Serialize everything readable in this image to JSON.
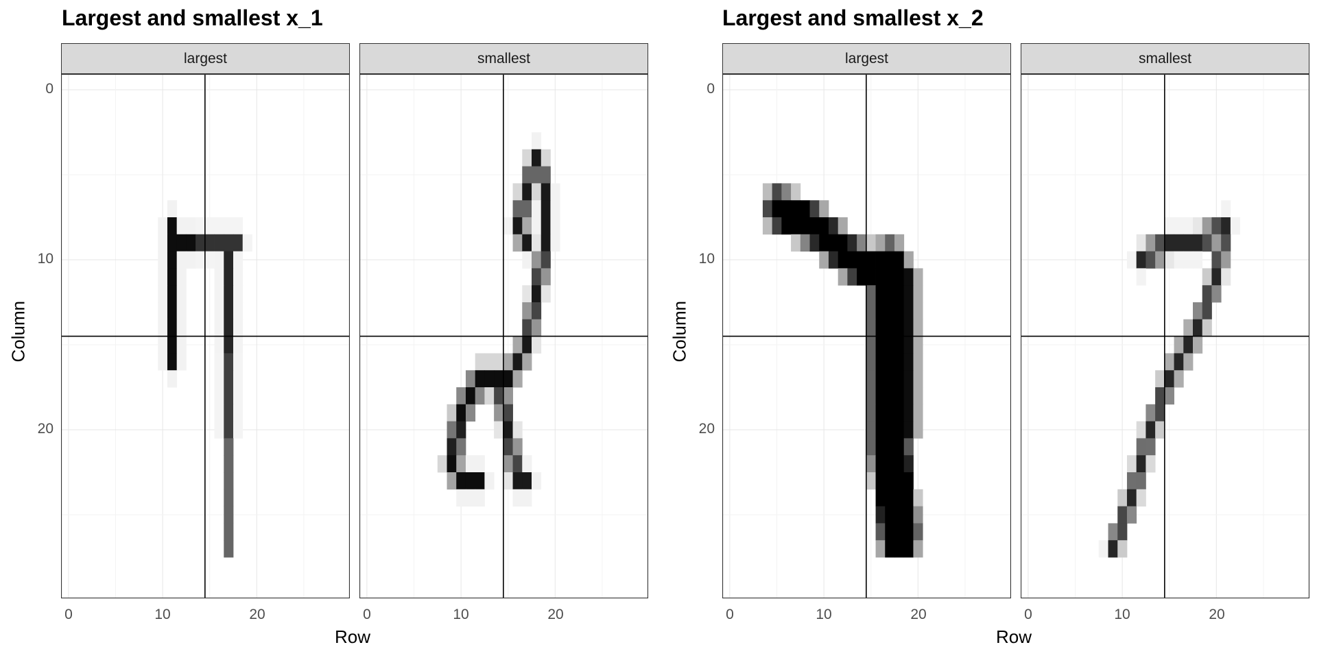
{
  "chart_data": [
    {
      "type": "heatmap",
      "title": "Largest and smallest x_1",
      "xlabel": "Row",
      "ylabel": "Column",
      "xlim": [
        0,
        28
      ],
      "ylim": [
        0,
        28
      ],
      "x_ticks": [
        "0",
        "10",
        "20"
      ],
      "y_ticks": [
        "0",
        "10",
        "20"
      ],
      "grid": true,
      "reference_lines": {
        "vertical": 14.5,
        "horizontal": 14.5
      },
      "facets": [
        {
          "label": "largest",
          "strokes": [
            {
              "points": [
                [
                  11,
                  8
                ],
                [
                  11,
                  12
                ],
                [
                  11,
                  15
                ],
                [
                  11,
                  16
                ]
              ],
              "width": 1,
              "value": 0.95
            },
            {
              "points": [
                [
                  11,
                  9
                ],
                [
                  13,
                  9
                ]
              ],
              "width": 1,
              "value": 0.95
            },
            {
              "points": [
                [
                  14,
                  9
                ],
                [
                  18,
                  9
                ]
              ],
              "width": 1,
              "value": 0.8
            },
            {
              "points": [
                [
                  17,
                  10
                ],
                [
                  17,
                  15
                ]
              ],
              "width": 1,
              "value": 0.85
            },
            {
              "points": [
                [
                  17,
                  15
                ],
                [
                  17,
                  20
                ]
              ],
              "width": 1,
              "value": 0.75
            },
            {
              "points": [
                [
                  17,
                  20
                ],
                [
                  17,
                  27
                ]
              ],
              "width": 1,
              "value": 0.6
            }
          ]
        },
        {
          "label": "smallest",
          "strokes": [
            {
              "points": [
                [
                  18,
                  4
                ],
                [
                  17,
                  6
                ],
                [
                  16,
                  8
                ],
                [
                  17,
                  9
                ]
              ],
              "width": 1,
              "value": 0.9
            },
            {
              "points": [
                [
                  18,
                  4
                ],
                [
                  19,
                  6
                ],
                [
                  19,
                  9
                ]
              ],
              "width": 1,
              "value": 0.9
            },
            {
              "points": [
                [
                  19,
                  9
                ],
                [
                  18,
                  12
                ],
                [
                  17,
                  15
                ],
                [
                  15,
                  17
                ]
              ],
              "width": 1,
              "value": 0.9
            },
            {
              "points": [
                [
                  15,
                  17
                ],
                [
                  12,
                  17
                ],
                [
                  10,
                  19
                ],
                [
                  9,
                  22
                ]
              ],
              "width": 1.2,
              "value": 0.95
            },
            {
              "points": [
                [
                  9,
                  22
                ],
                [
                  10,
                  23
                ],
                [
                  12,
                  23
                ]
              ],
              "width": 1,
              "value": 0.95
            },
            {
              "points": [
                [
                  14,
                  17
                ],
                [
                  15,
                  20
                ],
                [
                  16,
                  23
                ],
                [
                  17,
                  23
                ]
              ],
              "width": 1,
              "value": 0.9
            }
          ]
        }
      ]
    },
    {
      "type": "heatmap",
      "title": "Largest and smallest x_2",
      "xlabel": "Row",
      "ylabel": "Column",
      "xlim": [
        0,
        28
      ],
      "ylim": [
        0,
        28
      ],
      "x_ticks": [
        "0",
        "10",
        "20"
      ],
      "y_ticks": [
        "0",
        "10",
        "20"
      ],
      "grid": true,
      "reference_lines": {
        "vertical": 14.5,
        "horizontal": 14.5
      },
      "facets": [
        {
          "label": "largest",
          "strokes": [
            {
              "points": [
                [
                  5,
                  7
                ],
                [
                  9,
                  8
                ],
                [
                  13,
                  10
                ],
                [
                  17,
                  11
                ]
              ],
              "width": 2.2,
              "value": 1.0
            },
            {
              "points": [
                [
                  17,
                  11
                ],
                [
                  17,
                  16
                ],
                [
                  17,
                  21
                ],
                [
                  18,
                  26
                ]
              ],
              "width": 4,
              "value": 1.0
            },
            {
              "points": [
                [
                  19,
                  11
                ],
                [
                  19,
                  20
                ]
              ],
              "width": 1.5,
              "value": 0.95
            }
          ]
        },
        {
          "label": "smallest",
          "strokes": [
            {
              "points": [
                [
                  12,
                  10
                ],
                [
                  15,
                  9
                ],
                [
                  18,
                  9
                ],
                [
                  21,
                  8
                ]
              ],
              "width": 1,
              "value": 0.85
            },
            {
              "points": [
                [
                  21,
                  8
                ],
                [
                  20,
                  11
                ],
                [
                  18,
                  14
                ],
                [
                  15,
                  17
                ]
              ],
              "width": 1,
              "value": 0.85
            },
            {
              "points": [
                [
                  15,
                  17
                ],
                [
                  13,
                  20
                ],
                [
                  11,
                  24
                ],
                [
                  9,
                  27
                ]
              ],
              "width": 1,
              "value": 0.85
            }
          ]
        }
      ]
    }
  ]
}
